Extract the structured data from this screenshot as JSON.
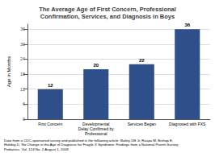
{
  "chart_data": {
    "type": "bar",
    "title": "The Average Age of First Concern, Professional\nConfirmation, Services, and Diagnosis in Boys",
    "categories": [
      "First Concern",
      "Developmental\nDelay Confirmed by\nProfessional",
      "Services Began",
      "Diagnosed with FXS"
    ],
    "values": [
      12,
      20,
      22,
      36
    ],
    "color": "#2E4F8A",
    "ylabel": "Age in Months",
    "ylim": [
      0,
      38
    ],
    "yticks": [
      0,
      6,
      12,
      18,
      24,
      30,
      36
    ],
    "grid": true,
    "data_labels": true,
    "annotations": [
      "Data from a CDC-sponsored survey and published in the following article: Bailey DB Jr, Raspa M, Bishop E,\nHoliday D. No Change in the Age of Diagnosis for Fragile X Syndrome: Findings from a National Parent Survey;\nPediatrics. Vol. 124 No. 2 August 1, 2009"
    ]
  }
}
